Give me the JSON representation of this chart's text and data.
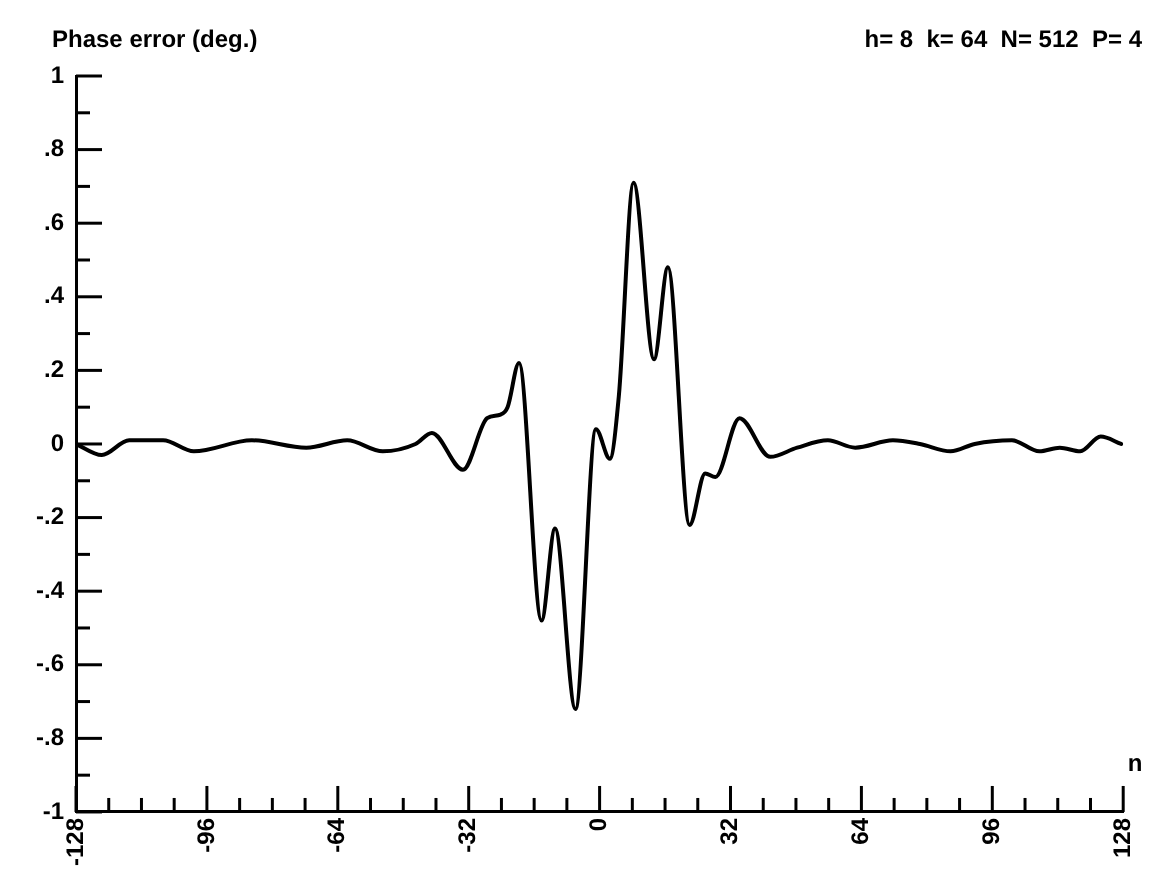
{
  "chart_data": {
    "type": "line",
    "title": "Phase error (deg.)",
    "subtitle": "h= 8  k= 64  N= 512  P= 4",
    "xlabel": "n",
    "x": [
      -128,
      -121.7,
      -115,
      -106.7,
      -99.2,
      -85,
      -71.7,
      -61.7,
      -53,
      -45,
      -41,
      -33.4,
      -27.5,
      -24.2,
      -22.5,
      -19.7,
      -14.2,
      -10.9,
      -5.9,
      -0.9,
      2.5,
      4.7,
      8.3,
      13.3,
      16.7,
      22,
      25.8,
      28.3,
      34.2,
      41.7,
      48.3,
      55.8,
      62.5,
      71.7,
      78.3,
      85.8,
      91.7,
      100.8,
      107.5,
      112.5,
      117.5,
      122.5,
      127.5
    ],
    "series": [
      {
        "color": "#000000",
        "values": [
          0,
          -0.03,
          0.01,
          0.01,
          -0.02,
          0.01,
          -0.01,
          0.01,
          -0.02,
          0,
          0.03,
          -0.07,
          0.07,
          0.08,
          0.1,
          0.22,
          -0.48,
          -0.23,
          -0.72,
          0.04,
          -0.04,
          0.13,
          0.71,
          0.23,
          0.48,
          -0.22,
          -0.08,
          -0.09,
          0.07,
          -0.035,
          -0.01,
          0.01,
          -0.01,
          0.01,
          0,
          -0.02,
          0,
          0.01,
          -0.02,
          -0.01,
          -0.02,
          0.02,
          0
        ]
      }
    ],
    "xlim": [
      -128,
      128
    ],
    "xticks": [
      -128,
      {
        "value": -120,
        "label": null
      },
      {
        "value": -112,
        "label": null
      },
      {
        "value": -104,
        "label": null
      },
      -96,
      {
        "value": -88,
        "label": null
      },
      {
        "value": -80,
        "label": null
      },
      {
        "value": -72,
        "label": null
      },
      -64,
      {
        "value": -56,
        "label": null
      },
      {
        "value": -48,
        "label": null
      },
      {
        "value": -40,
        "label": null
      },
      -32,
      {
        "value": -24,
        "label": null
      },
      {
        "value": -16,
        "label": null
      },
      {
        "value": -8,
        "label": null
      },
      0,
      {
        "value": 8,
        "label": null
      },
      {
        "value": 16,
        "label": null
      },
      {
        "value": 24,
        "label": null
      },
      32,
      {
        "value": 40,
        "label": null
      },
      {
        "value": 48,
        "label": null
      },
      {
        "value": 56,
        "label": null
      },
      64,
      {
        "value": 72,
        "label": null
      },
      {
        "value": 80,
        "label": null
      },
      {
        "value": 88,
        "label": null
      },
      96,
      {
        "value": 104,
        "label": null
      },
      {
        "value": 112,
        "label": null
      },
      {
        "value": 120,
        "label": null
      },
      128
    ],
    "ylim": [
      -1,
      1
    ],
    "yticks": [
      -1,
      {
        "value": -0.9,
        "label": null
      },
      {
        "value": -0.8,
        "label": "-.8"
      },
      {
        "value": -0.7,
        "label": null
      },
      {
        "value": -0.6,
        "label": "-.6"
      },
      {
        "value": -0.5,
        "label": null
      },
      {
        "value": -0.4,
        "label": "-.4"
      },
      {
        "value": -0.3,
        "label": null
      },
      {
        "value": -0.2,
        "label": "-.2"
      },
      {
        "value": -0.1,
        "label": null
      },
      0,
      {
        "value": 0.1,
        "label": null
      },
      {
        "value": 0.2,
        "label": ".2"
      },
      {
        "value": 0.3,
        "label": null
      },
      {
        "value": 0.4,
        "label": ".4"
      },
      {
        "value": 0.5,
        "label": null
      },
      {
        "value": 0.6,
        "label": ".6"
      },
      {
        "value": 0.7,
        "label": null
      },
      {
        "value": 0.8,
        "label": ".8"
      },
      {
        "value": 0.9,
        "label": null
      },
      1
    ],
    "grid": false,
    "legend": false,
    "marker": "none",
    "line_style": "solid"
  }
}
